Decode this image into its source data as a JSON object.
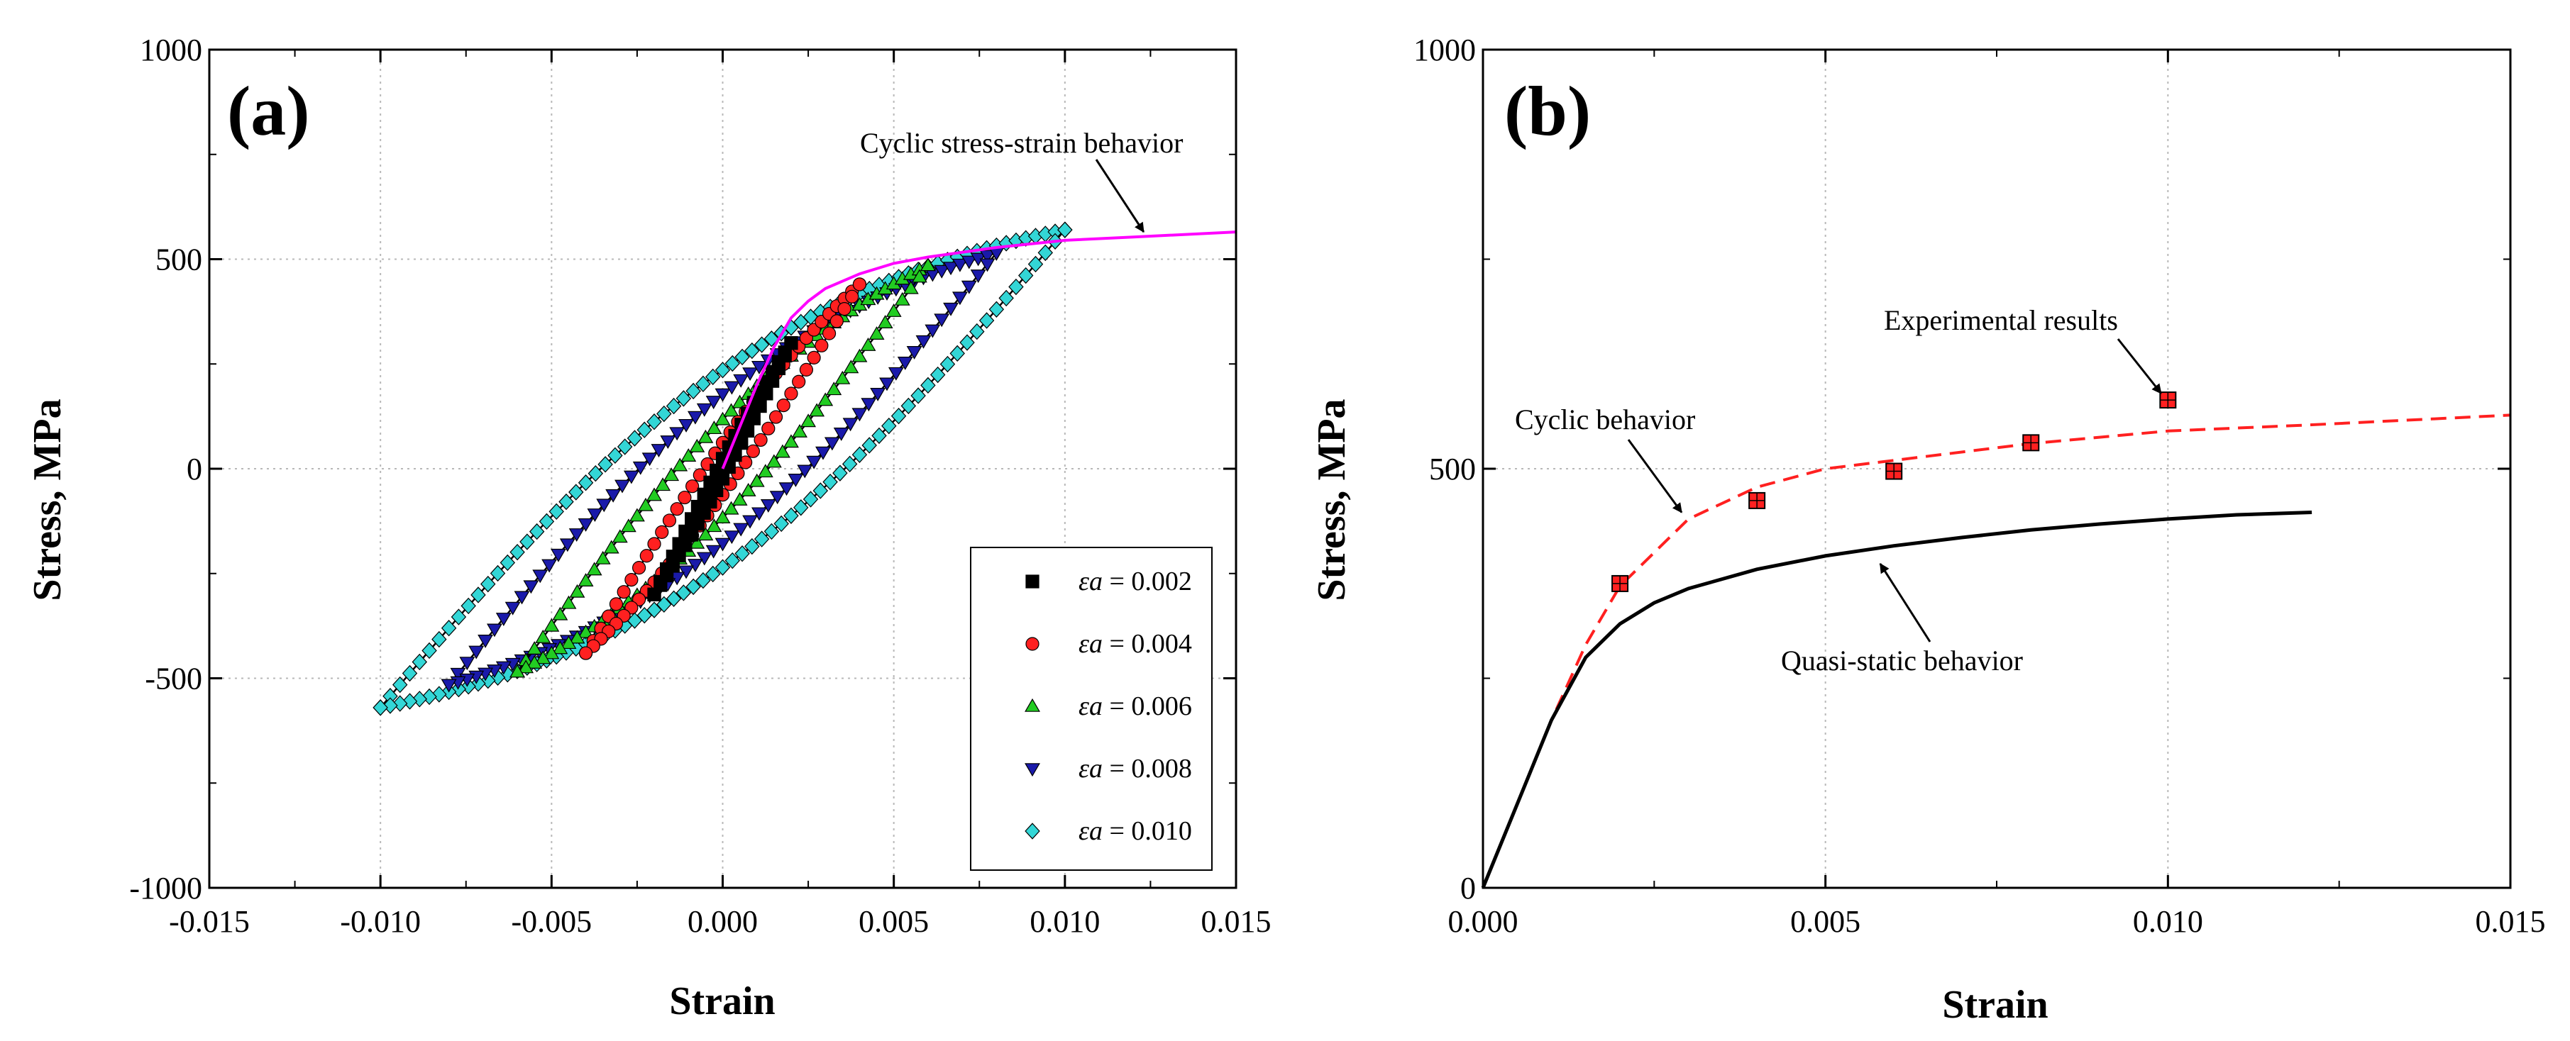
{
  "chart_data": [
    {
      "type": "line",
      "panel_label": "(a)",
      "xlabel": "Strain",
      "ylabel": "Stress, MPa",
      "xlim": [
        -0.015,
        0.015
      ],
      "ylim": [
        -1000,
        1000
      ],
      "x_ticks": [
        -0.015,
        -0.01,
        -0.005,
        0,
        0.005,
        0.01,
        0.015
      ],
      "x_tick_labels": [
        "-0.015",
        "-0.010",
        "-0.005",
        "0.000",
        "0.005",
        "0.010",
        "0.015"
      ],
      "y_ticks": [
        -1000,
        -500,
        0,
        500,
        1000
      ],
      "y_tick_labels": [
        "-1000",
        "-500",
        "0",
        "500",
        "1000"
      ],
      "grid": true,
      "legend_position": "bottom-right",
      "series": [
        {
          "name": "εa = 0.002",
          "symbol": "εa",
          "value": "= 0.002",
          "amplitude": 0.002,
          "peak_stress": 300,
          "marker": "square",
          "color": "#000000",
          "points": 22
        },
        {
          "name": "εa = 0.004",
          "symbol": "εa",
          "value": "= 0.004",
          "amplitude": 0.004,
          "peak_stress": 440,
          "marker": "circle",
          "color": "#ff2020",
          "points": 36
        },
        {
          "name": "εa = 0.006",
          "symbol": "εa",
          "value": "= 0.006",
          "amplitude": 0.006,
          "peak_stress": 485,
          "marker": "triangle-up",
          "color": "#22cc22",
          "points": 48
        },
        {
          "name": "εa = 0.008",
          "symbol": "εa",
          "value": "= 0.008",
          "amplitude": 0.008,
          "peak_stress": 515,
          "marker": "triangle-down",
          "color": "#1a1aaa",
          "points": 60
        },
        {
          "name": "εa = 0.010",
          "symbol": "εa",
          "value": "= 0.010",
          "amplitude": 0.01,
          "peak_stress": 570,
          "marker": "diamond",
          "color": "#33d6d6",
          "points": 70
        }
      ],
      "curve": {
        "name": "Cyclic stress-strain behavior",
        "color": "#ff00ff",
        "x": [
          0,
          0.0005,
          0.001,
          0.0015,
          0.002,
          0.0025,
          0.003,
          0.004,
          0.005,
          0.006,
          0.008,
          0.01,
          0.012,
          0.015
        ],
        "y": [
          0,
          100,
          200,
          290,
          360,
          400,
          430,
          465,
          490,
          505,
          528,
          545,
          553,
          565
        ]
      },
      "annotations": [
        {
          "text": "Cyclic stress-strain behavior",
          "x": -0.002,
          "y": 765,
          "arrow_to": [
            0.0123,
            555
          ]
        }
      ]
    },
    {
      "type": "line",
      "panel_label": "(b)",
      "xlabel": "Strain",
      "ylabel": "Stress, MPa",
      "xlim": [
        0,
        0.015
      ],
      "ylim": [
        0,
        1000
      ],
      "x_ticks": [
        0,
        0.005,
        0.01,
        0.015
      ],
      "x_tick_labels": [
        "0.000",
        "0.005",
        "0.010",
        "0.015"
      ],
      "y_ticks": [
        0,
        500,
        1000
      ],
      "y_tick_labels": [
        "0",
        "500",
        "1000"
      ],
      "grid": true,
      "series": [
        {
          "name": "Cyclic behavior",
          "style": "dashed",
          "color": "#ff2020",
          "x": [
            0,
            0.0005,
            0.001,
            0.0015,
            0.002,
            0.0025,
            0.003,
            0.004,
            0.005,
            0.006,
            0.008,
            0.01,
            0.012,
            0.015
          ],
          "y": [
            0,
            100,
            200,
            290,
            360,
            400,
            440,
            478,
            500,
            510,
            530,
            545,
            552,
            564
          ]
        },
        {
          "name": "Quasi-static behavior",
          "style": "solid",
          "color": "#000000",
          "x": [
            0,
            0.0005,
            0.001,
            0.0015,
            0.002,
            0.0025,
            0.003,
            0.004,
            0.005,
            0.006,
            0.007,
            0.008,
            0.009,
            0.01,
            0.011,
            0.0121
          ],
          "y": [
            0,
            100,
            200,
            275,
            315,
            340,
            357,
            380,
            396,
            408,
            418,
            427,
            434,
            440,
            445,
            448
          ]
        },
        {
          "name": "Experimental results",
          "style": "markers",
          "marker": "square",
          "color": "#ff2020",
          "x": [
            0.002,
            0.004,
            0.006,
            0.008,
            0.01
          ],
          "y": [
            363,
            462,
            497,
            531,
            582
          ]
        }
      ],
      "annotations": [
        {
          "text": "Experimental results",
          "x": 0.0092,
          "y": 672,
          "arrow_to": [
            0.0099,
            590
          ]
        },
        {
          "text": "Cyclic behavior",
          "x": 0.0024,
          "y": 552,
          "arrow_to": [
            0.0029,
            448
          ]
        },
        {
          "text": "Quasi-static behavior",
          "x": 0.0066,
          "y": 265,
          "arrow_to": [
            0.0058,
            390
          ]
        }
      ]
    }
  ]
}
